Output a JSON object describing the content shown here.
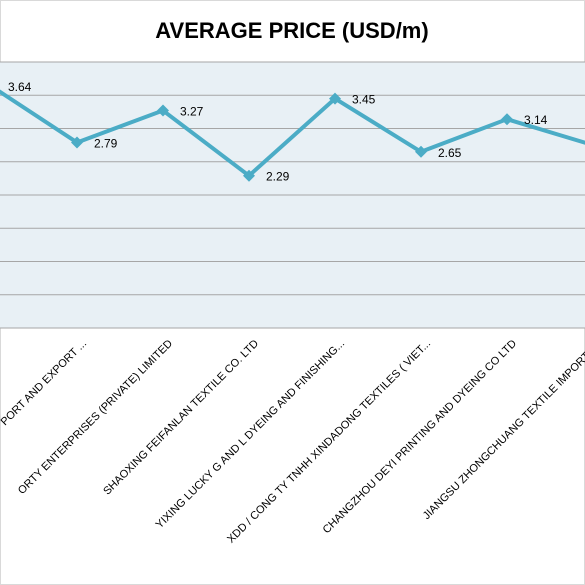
{
  "chart_data": {
    "type": "line",
    "title": "AVERAGE PRICE (USD/m)",
    "categories": [
      null,
      "PORT AND EXPORT ...",
      "ORTY ENTERPRISES (PRIVATE) LIMITED",
      "SHAOXING FEIFANLAN TEXTILE CO. LTD",
      "YIXING LUCKY G AND L DYEING AND FINISHING...",
      "XDD / CONG TY TNHH XINDADONG TEXTILES ( VIET...",
      "CHANGZHOU DEYI PRINTING AND DYEING CO LTD",
      "JIANGSU ZHONGCHUANG TEXTILE IMPORT AN"
    ],
    "values": [
      3.64,
      2.79,
      3.27,
      2.29,
      3.45,
      2.65,
      3.14,
      2.75
    ],
    "color": "#4bacc6",
    "ylim": [
      0,
      4
    ],
    "yticks": [
      0,
      0.5,
      1,
      1.5,
      2,
      2.5,
      3,
      3.5,
      4
    ],
    "grid": true
  }
}
